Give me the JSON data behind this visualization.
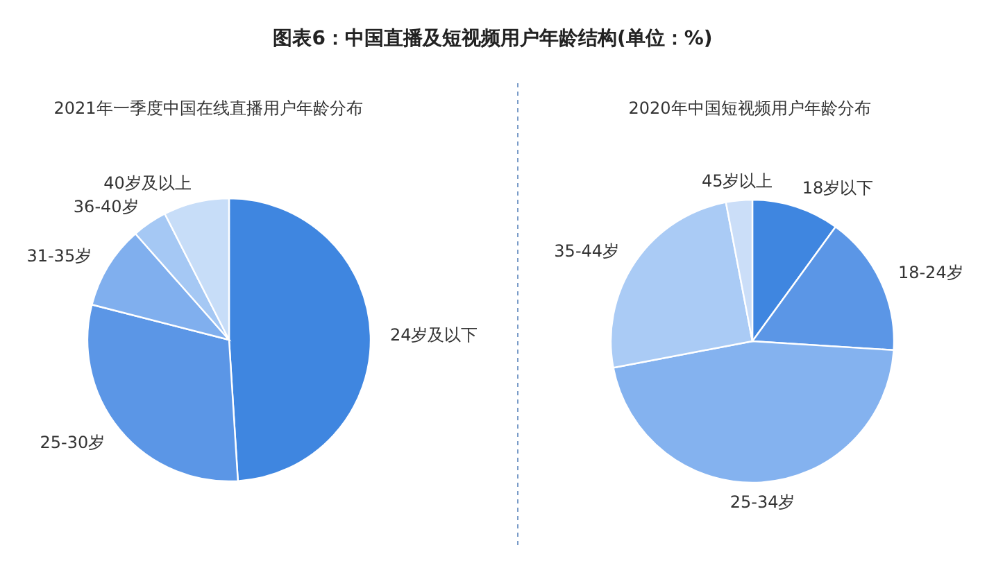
{
  "chart_data": [
    {
      "type": "pie",
      "title": "图表6：中国直播及短视频用户年龄结构(单位：%)",
      "subtitle": "2021年一季度中国在线直播用户年龄分布",
      "categories": [
        "24岁及以下",
        "25-30岁",
        "31-35岁",
        "36-40岁",
        "40岁及以上"
      ],
      "values": [
        49,
        30,
        9.5,
        4,
        7.5
      ],
      "colors": [
        "#3f86e0",
        "#5b96e6",
        "#80afee",
        "#a5c8f4",
        "#c7ddf8"
      ]
    },
    {
      "type": "pie",
      "title": "2020年中国短视频用户年龄分布",
      "categories": [
        "18岁以下",
        "18-24岁",
        "25-34岁",
        "35-44岁",
        "45岁以上"
      ],
      "values": [
        10,
        16,
        46,
        25,
        3
      ],
      "colors": [
        "#3f86e0",
        "#5b96e6",
        "#84b2ef",
        "#aacbf5",
        "#cbdef8"
      ]
    }
  ]
}
